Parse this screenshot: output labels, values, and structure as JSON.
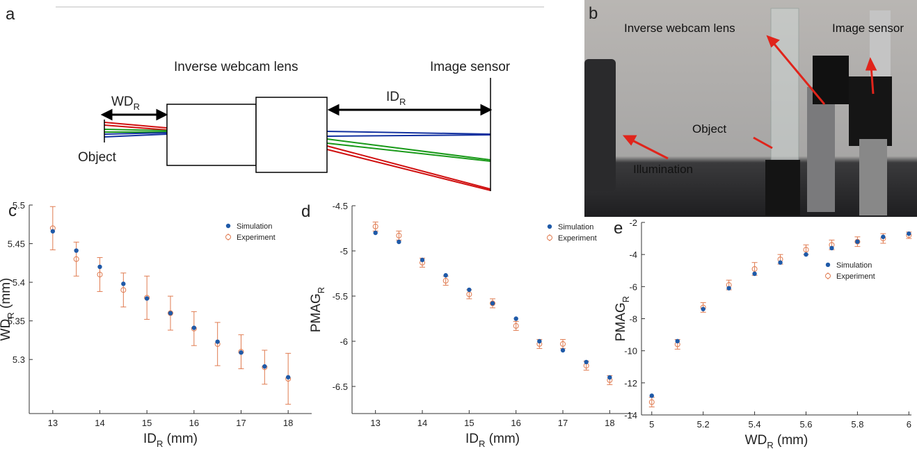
{
  "diagram": {
    "panel": "a",
    "object": "Object",
    "wd": [
      "WD",
      "R"
    ],
    "lens": "Inverse webcam lens",
    "id": [
      "ID",
      "R"
    ],
    "sensor": "Image sensor"
  },
  "photo": {
    "panel": "b",
    "lens": "Inverse webcam lens",
    "sensor": "Image sensor",
    "object": "Object",
    "illumination": "Illumination"
  },
  "chart_data": [
    {
      "type": "scatter",
      "panel": "c",
      "x": [
        13,
        13.5,
        14,
        14.5,
        15,
        15.5,
        16,
        16.5,
        17,
        17.5,
        18
      ],
      "xlim": [
        12.5,
        18.5
      ],
      "xticks": [
        13,
        14,
        15,
        16,
        17,
        18
      ],
      "ylim": [
        5.23,
        5.5
      ],
      "yticks": [
        5.3,
        5.35,
        5.4,
        5.45,
        5.5
      ],
      "x_label": [
        "ID",
        "R",
        " (mm)"
      ],
      "y_label": [
        "WD",
        "R",
        " (mm)"
      ],
      "legend": "upper right",
      "series": [
        {
          "name": "Simulation",
          "color": "#1f5aa8",
          "marker": "dot",
          "values": [
            5.466,
            5.441,
            5.42,
            5.398,
            5.379,
            5.36,
            5.341,
            5.323,
            5.309,
            5.291,
            5.277
          ]
        },
        {
          "name": "Experiment",
          "color": "#e07b50",
          "marker": "circle",
          "values": [
            5.47,
            5.43,
            5.41,
            5.39,
            5.38,
            5.36,
            5.34,
            5.32,
            5.31,
            5.29,
            5.275
          ],
          "errors": [
            0.028,
            0.022,
            0.022,
            0.022,
            0.028,
            0.022,
            0.022,
            0.028,
            0.022,
            0.022,
            0.033
          ]
        }
      ]
    },
    {
      "type": "scatter",
      "panel": "d",
      "x": [
        13,
        13.5,
        14,
        14.5,
        15,
        15.5,
        16,
        16.5,
        17,
        17.5,
        18
      ],
      "xlim": [
        12.5,
        18.5
      ],
      "xticks": [
        13,
        14,
        15,
        16,
        17,
        18
      ],
      "ylim": [
        -6.8,
        -4.5
      ],
      "yticks": [
        -6.5,
        -6,
        -5.5,
        -5,
        -4.5
      ],
      "x_label": [
        "ID",
        "R",
        " (mm)"
      ],
      "y_label": [
        "PMAG",
        "R"
      ],
      "legend": "upper right",
      "series": [
        {
          "name": "Simulation",
          "color": "#1f5aa8",
          "marker": "dot",
          "values": [
            -4.8,
            -4.9,
            -5.1,
            -5.27,
            -5.43,
            -5.58,
            -5.75,
            -6.0,
            -6.1,
            -6.23,
            -6.4
          ]
        },
        {
          "name": "Experiment",
          "color": "#e07b50",
          "marker": "circle",
          "values": [
            -4.73,
            -4.83,
            -5.13,
            -5.33,
            -5.48,
            -5.58,
            -5.83,
            -6.03,
            -6.03,
            -6.27,
            -6.43
          ],
          "errors": [
            0.05,
            0.05,
            0.05,
            0.05,
            0.05,
            0.05,
            0.05,
            0.05,
            0.05,
            0.05,
            0.05
          ]
        }
      ]
    },
    {
      "type": "scatter",
      "panel": "e",
      "x": [
        5,
        5.1,
        5.2,
        5.3,
        5.4,
        5.5,
        5.6,
        5.7,
        5.8,
        5.9,
        6
      ],
      "xlim": [
        4.96,
        6.01
      ],
      "xticks": [
        5,
        5.2,
        5.4,
        5.6,
        5.8,
        6
      ],
      "ylim": [
        -14,
        -2
      ],
      "yticks": [
        -14,
        -12,
        -10,
        -8,
        -6,
        -4,
        -2
      ],
      "x_label": [
        "WD",
        "R",
        " (mm)"
      ],
      "y_label": [
        "PMAG",
        "R"
      ],
      "legend": "right",
      "series": [
        {
          "name": "Simulation",
          "color": "#1f5aa8",
          "marker": "dot",
          "values": [
            -12.8,
            -9.4,
            -7.4,
            -6.1,
            -5.2,
            -4.5,
            -4.0,
            -3.6,
            -3.2,
            -2.9,
            -2.7
          ]
        },
        {
          "name": "Experiment",
          "color": "#e07b50",
          "marker": "circle",
          "values": [
            -13.2,
            -9.6,
            -7.3,
            -5.9,
            -4.9,
            -4.3,
            -3.7,
            -3.4,
            -3.2,
            -3.0,
            -2.8
          ],
          "errors": [
            0.3,
            0.3,
            0.3,
            0.3,
            0.4,
            0.3,
            0.3,
            0.3,
            0.3,
            0.3,
            0.2
          ]
        }
      ]
    }
  ]
}
